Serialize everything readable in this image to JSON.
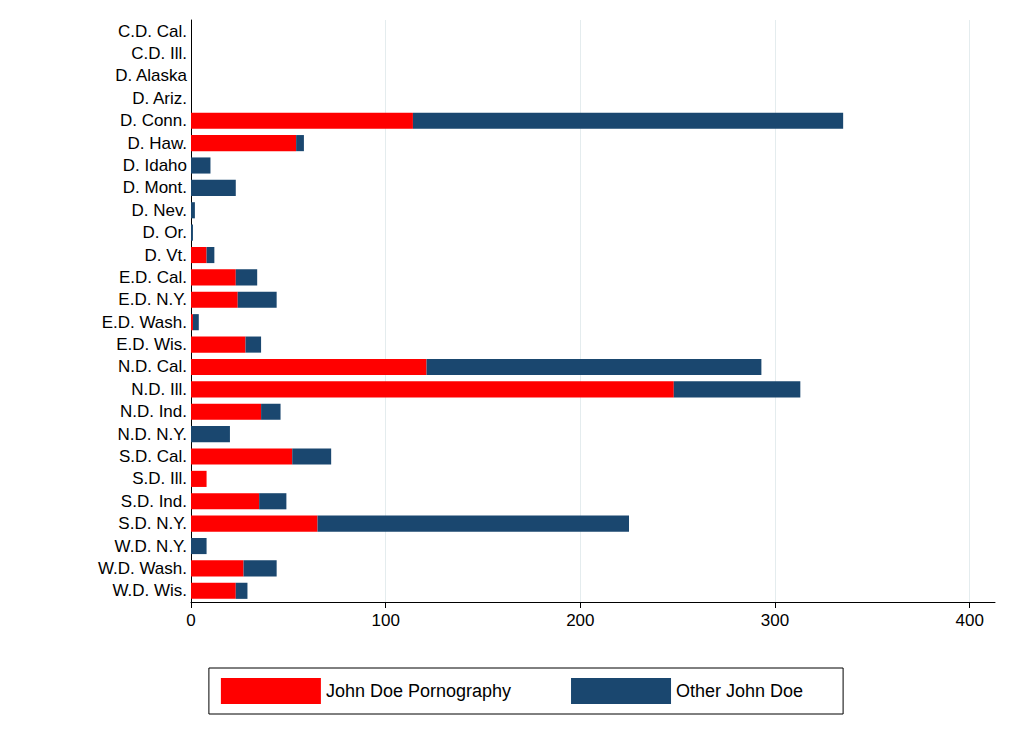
{
  "chart_data": {
    "type": "bar",
    "orientation": "horizontal",
    "stacked": true,
    "grid": true,
    "legend": "bottom",
    "categories": [
      "C.D. Cal.",
      "C.D. Ill.",
      "D. Alaska",
      "D. Ariz.",
      "D. Conn.",
      "D. Haw.",
      "D. Idaho",
      "D. Mont.",
      "D. Nev.",
      "D. Or.",
      "D. Vt.",
      "E.D. Cal.",
      "E.D. N.Y.",
      "E.D. Wash.",
      "E.D. Wis.",
      "N.D. Cal.",
      "N.D. Ill.",
      "N.D. Ind.",
      "N.D. N.Y.",
      "S.D. Cal.",
      "S.D. Ill.",
      "S.D. Ind.",
      "S.D. N.Y.",
      "W.D. N.Y.",
      "W.D. Wash.",
      "W.D. Wis."
    ],
    "series": [
      {
        "name": "John Doe Pornography",
        "color": "#ff0000",
        "values": [
          0,
          0,
          0,
          0,
          114,
          54,
          0,
          0,
          0,
          0,
          8,
          23,
          24,
          1,
          28,
          121,
          248,
          36,
          0,
          52,
          8,
          35,
          65,
          0,
          27,
          23
        ]
      },
      {
        "name": "Other John Doe",
        "color": "#1a476f",
        "values": [
          0,
          0,
          0,
          0,
          221,
          4,
          10,
          23,
          2,
          1,
          4,
          11,
          20,
          3,
          8,
          172,
          65,
          10,
          20,
          20,
          0,
          14,
          160,
          8,
          17,
          6
        ]
      }
    ],
    "xlim": [
      0,
      413
    ],
    "xticks": [
      0,
      100,
      200,
      300,
      400
    ]
  }
}
